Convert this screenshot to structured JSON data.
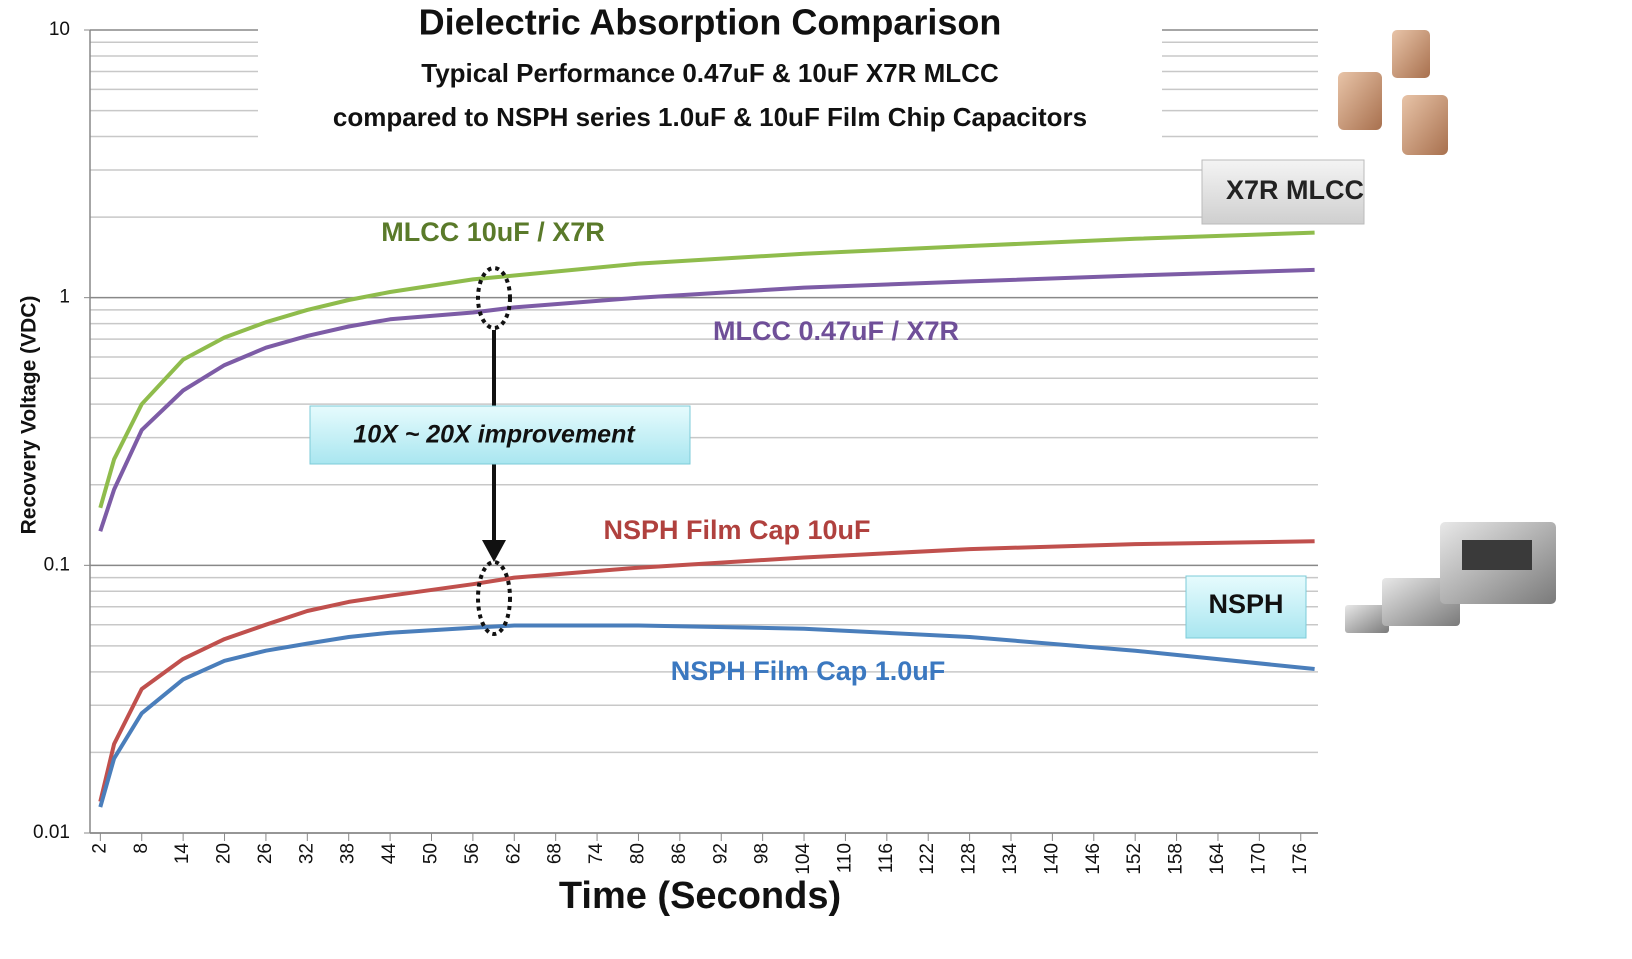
{
  "chart_data": {
    "type": "line",
    "title": "Dielectric Absorption Comparison",
    "subtitle": [
      "Typical Performance 0.47uF & 10uF X7R MLCC",
      "compared to NSPH series 1.0uF & 10uF Film Chip Capacitors"
    ],
    "x_label": "Time (Seconds)",
    "y_label": "Recovery Voltage (VDC)",
    "x": [
      2,
      4,
      8,
      14,
      20,
      26,
      32,
      38,
      44,
      56,
      62,
      80,
      104,
      128,
      152,
      178
    ],
    "series": [
      {
        "name": "MLCC 10uF / X7R",
        "color": "#8fbc4c",
        "label_color": "#5a7a2a",
        "values": [
          0.164,
          0.249,
          0.4,
          0.587,
          0.71,
          0.81,
          0.9,
          0.98,
          1.05,
          1.17,
          1.21,
          1.34,
          1.46,
          1.56,
          1.66,
          1.75
        ]
      },
      {
        "name": "MLCC 0.47uF / X7R",
        "color": "#7d5ca6",
        "label_color": "#6f4f98",
        "values": [
          0.134,
          0.192,
          0.32,
          0.45,
          0.56,
          0.65,
          0.72,
          0.78,
          0.83,
          0.88,
          0.92,
          1.0,
          1.09,
          1.15,
          1.21,
          1.27
        ]
      },
      {
        "name": "NSPH Film Cap 10uF",
        "color": "#c0504d",
        "label_color": "#b0413e",
        "values": [
          0.0131,
          0.0215,
          0.0345,
          0.0447,
          0.053,
          0.06,
          0.0675,
          0.073,
          0.077,
          0.085,
          0.09,
          0.098,
          0.107,
          0.115,
          0.12,
          0.123
        ]
      },
      {
        "name": "NSPH Film Cap 1.0uF",
        "color": "#4a7ebb",
        "label_color": "#3b78c0",
        "values": [
          0.0125,
          0.019,
          0.028,
          0.0375,
          0.044,
          0.048,
          0.051,
          0.054,
          0.056,
          0.0585,
          0.0596,
          0.0596,
          0.058,
          0.054,
          0.048,
          0.041
        ]
      }
    ],
    "xlim": [
      0.5,
      178.5
    ],
    "xticks": [
      2,
      8,
      14,
      20,
      26,
      32,
      38,
      44,
      50,
      56,
      62,
      68,
      74,
      80,
      86,
      92,
      98,
      104,
      110,
      116,
      122,
      128,
      134,
      140,
      146,
      152,
      158,
      164,
      170,
      176
    ],
    "ylim": [
      0.01,
      10
    ],
    "yticks": [
      0.01,
      0.1,
      1,
      10
    ],
    "log_y": true,
    "grid": true,
    "minor_grid": true,
    "annotations": [
      "10X ~ 20X improvement",
      "X7R MLCC",
      "NSPH"
    ]
  }
}
